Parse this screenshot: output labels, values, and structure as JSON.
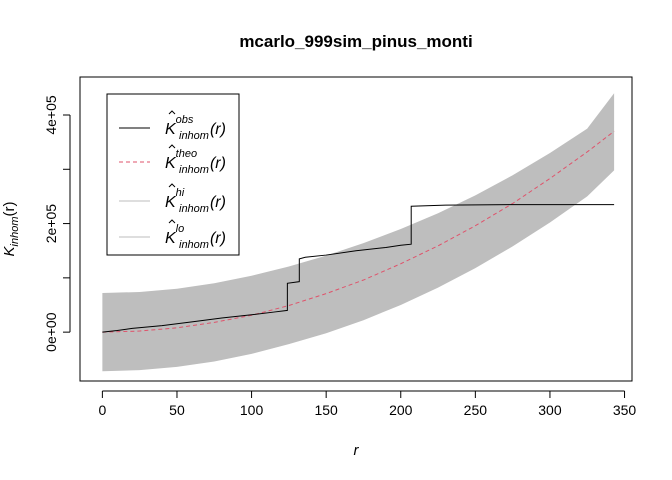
{
  "chart_data": {
    "type": "line",
    "title": "mcarlo_999sim_pinus_monti",
    "xlabel": "r",
    "ylabel": {
      "base": "K",
      "sub": "inhom",
      "arg": "(r)"
    },
    "xlim": [
      -15,
      355
    ],
    "ylim": [
      -90000,
      470000
    ],
    "x_ticks": [
      0,
      50,
      100,
      150,
      200,
      250,
      300,
      350
    ],
    "x_tick_labels": [
      "0",
      "50",
      "100",
      "150",
      "200",
      "250",
      "300",
      "350"
    ],
    "y_ticks": [
      0,
      200000,
      400000
    ],
    "y_tick_labels": [
      "0e+00",
      "2e+05",
      "4e+05"
    ],
    "grid": false,
    "legend_position": "top-left",
    "legend": [
      {
        "key": "obs",
        "base": "K",
        "sub": "inhom",
        "sup": "obs",
        "arg": "(r)",
        "color": "#000000",
        "dash": "solid"
      },
      {
        "key": "theo",
        "base": "K",
        "sub": "inhom",
        "sup": "theo",
        "arg": "(r)",
        "color": "#DF536B",
        "dash": "dashed"
      },
      {
        "key": "hi",
        "base": "K",
        "sub": "inhom",
        "sup": "hi",
        "arg": "(r)",
        "color": "#BEBEBE",
        "dash": "solid"
      },
      {
        "key": "lo",
        "base": "K",
        "sub": "inhom",
        "sup": "lo",
        "arg": "(r)",
        "color": "#BEBEBE",
        "dash": "solid"
      }
    ],
    "envelope": {
      "color": "#BEBEBE",
      "r": [
        0,
        25,
        50,
        75,
        100,
        125,
        150,
        175,
        200,
        225,
        250,
        275,
        300,
        325,
        343
      ],
      "hi": [
        72000,
        74000,
        80000,
        90000,
        104000,
        121000,
        141000,
        164000,
        190000,
        219000,
        252000,
        289000,
        330000,
        375000,
        440000
      ],
      "lo": [
        -72000,
        -70000,
        -64000,
        -54000,
        -40000,
        -22000,
        -2000,
        22000,
        50000,
        82000,
        118000,
        158000,
        202000,
        250000,
        298000
      ]
    },
    "series": [
      {
        "key": "theo",
        "color": "#DF536B",
        "dash": "dashed",
        "x": [
          0,
          25,
          50,
          75,
          100,
          125,
          150,
          175,
          200,
          225,
          250,
          275,
          300,
          325,
          343
        ],
        "y": [
          0,
          2000,
          8000,
          18000,
          31000,
          49000,
          71000,
          96000,
          126000,
          159000,
          196000,
          237000,
          283000,
          332000,
          370000
        ]
      },
      {
        "key": "obs",
        "color": "#000000",
        "dash": "solid",
        "x": [
          0,
          10,
          20,
          40,
          60,
          80,
          100,
          115,
          124,
          124,
          132,
          132,
          136,
          150,
          170,
          190,
          200,
          207,
          207,
          230,
          280,
          343
        ],
        "y": [
          0,
          3000,
          7000,
          12000,
          19000,
          26000,
          32000,
          37000,
          40000,
          90000,
          93000,
          135000,
          138000,
          142000,
          150000,
          156000,
          160000,
          162000,
          232000,
          234000,
          235000,
          235000
        ]
      }
    ]
  }
}
